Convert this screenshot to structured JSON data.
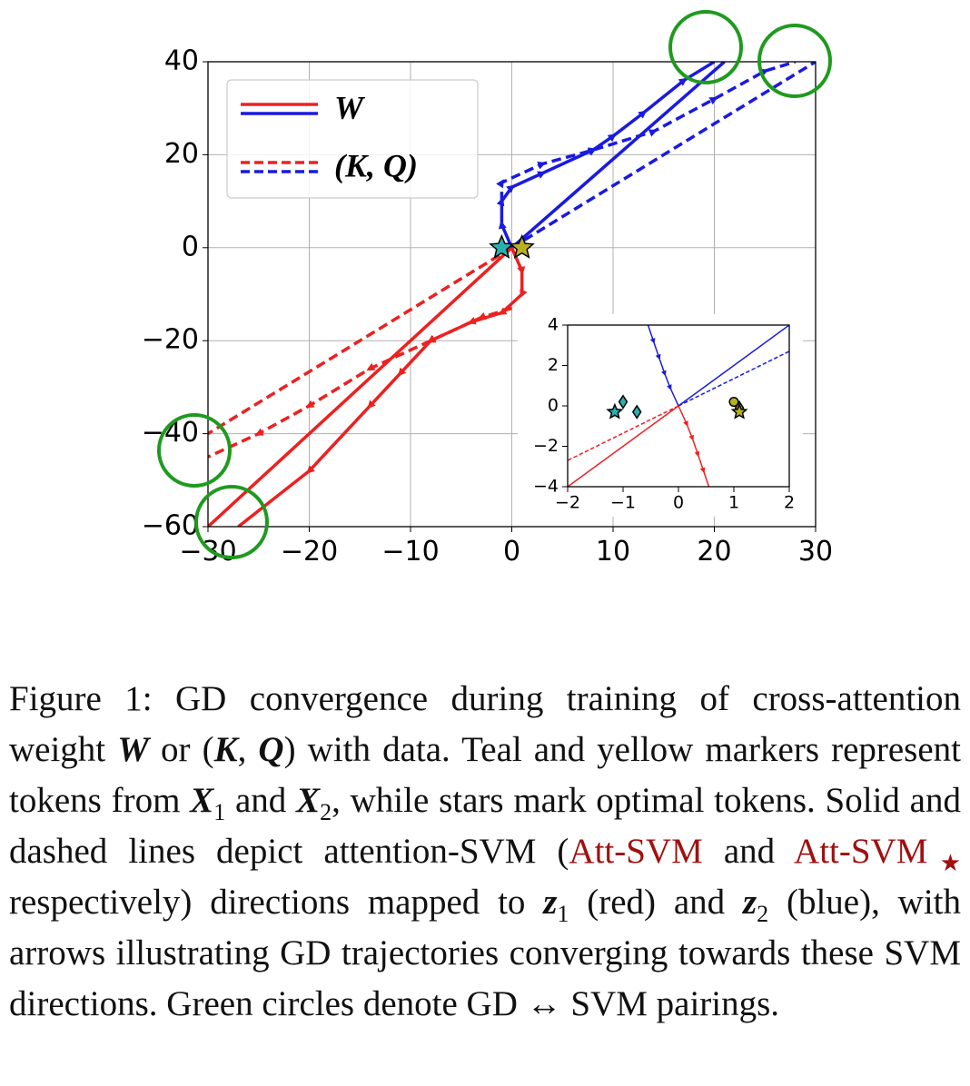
{
  "chart_data": [
    {
      "type": "line",
      "grid": true,
      "xlim": [
        -30,
        30
      ],
      "ylim": [
        -60,
        40
      ],
      "xticks": [
        {
          "value": -30,
          "label": "−30"
        },
        {
          "value": -20,
          "label": "−20"
        },
        {
          "value": -10,
          "label": "−10"
        },
        0,
        10,
        20,
        30
      ],
      "yticks": [
        {
          "value": -60,
          "label": "−60"
        },
        {
          "value": -40,
          "label": "−40"
        },
        {
          "value": -20,
          "label": "−20"
        },
        0,
        20,
        40
      ],
      "legend": {
        "loc": "upper left",
        "entries": [
          {
            "label": "W",
            "colors": [
              "#ee2020",
              "#1a1ae0"
            ],
            "dashed": false
          },
          {
            "label": "(K, Q)",
            "colors": [
              "#ee2020",
              "#1a1ae0"
            ],
            "dashed": true
          }
        ]
      },
      "series": [
        {
          "color": "#1a1ae0",
          "dashed": false,
          "arrows": false,
          "x": [
            0,
            21
          ],
          "y": [
            0,
            40
          ]
        },
        {
          "color": "#1a1ae0",
          "dashed": true,
          "arrows": false,
          "x": [
            0,
            30
          ],
          "y": [
            0,
            40
          ]
        },
        {
          "color": "#ee2020",
          "dashed": false,
          "arrows": false,
          "x": [
            0,
            -30
          ],
          "y": [
            0,
            -60
          ]
        },
        {
          "color": "#ee2020",
          "dashed": true,
          "arrows": false,
          "x": [
            0,
            -30
          ],
          "y": [
            0,
            -40
          ]
        },
        {
          "color": "#1a1ae0",
          "dashed": false,
          "arrows": true,
          "x": [
            0,
            -1,
            -1,
            0,
            3,
            8,
            10,
            13,
            17,
            20
          ],
          "y": [
            0,
            5,
            10,
            13,
            16,
            21,
            24,
            29,
            36,
            40
          ]
        },
        {
          "color": "#1a1ae0",
          "dashed": true,
          "arrows": true,
          "x": [
            -1,
            -1,
            3,
            8,
            14,
            20,
            25,
            28
          ],
          "y": [
            10,
            14,
            18,
            21,
            25,
            32,
            38,
            40
          ]
        },
        {
          "color": "#ee2020",
          "dashed": false,
          "arrows": true,
          "x": [
            0,
            1,
            1,
            -1,
            -4,
            -8,
            -11,
            -14,
            -20,
            -27
          ],
          "y": [
            0,
            -5,
            -10,
            -14,
            -16,
            -20,
            -27,
            -34,
            -48,
            -60
          ]
        },
        {
          "color": "#ee2020",
          "dashed": true,
          "arrows": true,
          "x": [
            0,
            -3,
            -8,
            -14,
            -20,
            -25,
            -30
          ],
          "y": [
            -13,
            -15,
            -20,
            -26,
            -34,
            -40,
            -45
          ]
        }
      ],
      "points": [
        {
          "shape": "star",
          "color": "#2ab0b0",
          "x": -1,
          "y": 0
        },
        {
          "shape": "star",
          "color": "#b8b020",
          "x": 1,
          "y": 0
        }
      ]
    },
    {
      "type": "line",
      "grid": false,
      "xlim": [
        -2,
        2
      ],
      "ylim": [
        -4,
        4
      ],
      "xticks": [
        {
          "value": -2,
          "label": "−2"
        },
        {
          "value": -1,
          "label": "−1"
        },
        0,
        1,
        2
      ],
      "yticks": [
        {
          "value": -4,
          "label": "−4"
        },
        {
          "value": -2,
          "label": "−2"
        },
        0,
        2,
        4
      ],
      "series": [
        {
          "color": "#1a1ae0",
          "dashed": false,
          "arrows": false,
          "x": [
            0,
            2
          ],
          "y": [
            0,
            4
          ]
        },
        {
          "color": "#1a1ae0",
          "dashed": true,
          "arrows": false,
          "x": [
            0,
            2
          ],
          "y": [
            0,
            2.7
          ]
        },
        {
          "color": "#ee2020",
          "dashed": false,
          "arrows": false,
          "x": [
            0,
            -2
          ],
          "y": [
            0,
            -4
          ]
        },
        {
          "color": "#ee2020",
          "dashed": true,
          "arrows": false,
          "x": [
            0,
            -2
          ],
          "y": [
            0,
            -2.7
          ]
        },
        {
          "color": "#1a1ae0",
          "dashed": false,
          "arrows": true,
          "x": [
            -0.55,
            -0.45,
            -0.35,
            -0.25,
            -0.15,
            0
          ],
          "y": [
            4,
            3.2,
            2.4,
            1.6,
            0.9,
            0
          ]
        },
        {
          "color": "#ee2020",
          "dashed": false,
          "arrows": true,
          "x": [
            0,
            0.15,
            0.25,
            0.35,
            0.45,
            0.55
          ],
          "y": [
            0,
            -0.9,
            -1.6,
            -2.4,
            -3.2,
            -4
          ]
        }
      ],
      "points": [
        {
          "shape": "star",
          "color": "#2ab0b0",
          "x": -1.15,
          "y": -0.3
        },
        {
          "shape": "diamond",
          "color": "#2ab0b0",
          "x": -1,
          "y": 0.2
        },
        {
          "shape": "diamond",
          "color": "#2ab0b0",
          "x": -0.75,
          "y": -0.3
        },
        {
          "shape": "circle",
          "color": "#b8b020",
          "x": 1,
          "y": 0.2
        },
        {
          "shape": "diamond",
          "color": "#b8b020",
          "x": 1.1,
          "y": -0.1
        },
        {
          "shape": "star",
          "color": "#b8b020",
          "x": 1.1,
          "y": -0.3
        }
      ]
    }
  ],
  "caption": {
    "parts": [
      "Figure 1:  GD convergence during training of cross-attention weight ",
      "W",
      " or (",
      "K",
      ", ",
      "Q",
      ") with data.  Teal and yellow markers represent tokens from ",
      "X",
      "1",
      " and ",
      "X",
      "2",
      ", while stars mark optimal tokens. Solid and dashed lines depict attention-SVM (",
      "Att-SVM",
      " and ",
      "Att-SVM",
      "★",
      " respectively) directions mapped to ",
      "z",
      "1",
      " (red) and ",
      "z",
      "2",
      " (blue), with arrows illustrating GD trajectories converging towards these SVM directions. Green circles denote GD ↔ SVM pairings."
    ]
  }
}
